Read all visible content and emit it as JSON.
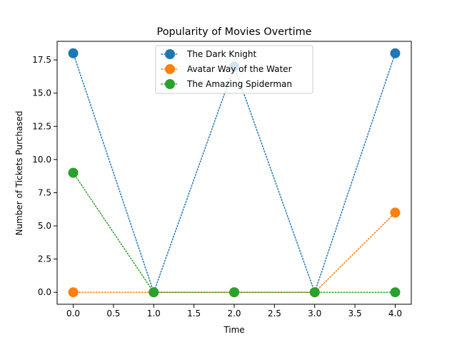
{
  "chart_data": {
    "type": "line",
    "title": "Popularity of Movies Overtime",
    "xlabel": "Time",
    "ylabel": "Number of Tickets Purchased",
    "x": [
      0,
      1,
      2,
      3,
      4
    ],
    "xlim": [
      -0.2,
      4.2
    ],
    "ylim": [
      -0.9,
      18.9
    ],
    "xticks": [
      0.0,
      0.5,
      1.0,
      1.5,
      2.0,
      2.5,
      3.0,
      3.5,
      4.0
    ],
    "xtick_labels": [
      "0.0",
      "0.5",
      "1.0",
      "1.5",
      "2.0",
      "2.5",
      "3.0",
      "3.5",
      "4.0"
    ],
    "yticks": [
      0.0,
      2.5,
      5.0,
      7.5,
      10.0,
      12.5,
      15.0,
      17.5
    ],
    "ytick_labels": [
      "0.0",
      "2.5",
      "5.0",
      "7.5",
      "10.0",
      "12.5",
      "15.0",
      "17.5"
    ],
    "grid": false,
    "legend_position": "top-center",
    "line_style": "dotted",
    "marker": "circle",
    "series": [
      {
        "name": "The Dark Knight",
        "color": "#1f77b4",
        "values": [
          18,
          0,
          17,
          0,
          18
        ]
      },
      {
        "name": "Avatar Way of the Water",
        "color": "#ff7f0e",
        "values": [
          0,
          0,
          0,
          0,
          6
        ]
      },
      {
        "name": "The Amazing Spiderman",
        "color": "#2ca02c",
        "values": [
          9,
          0,
          0,
          0,
          0
        ]
      }
    ]
  }
}
